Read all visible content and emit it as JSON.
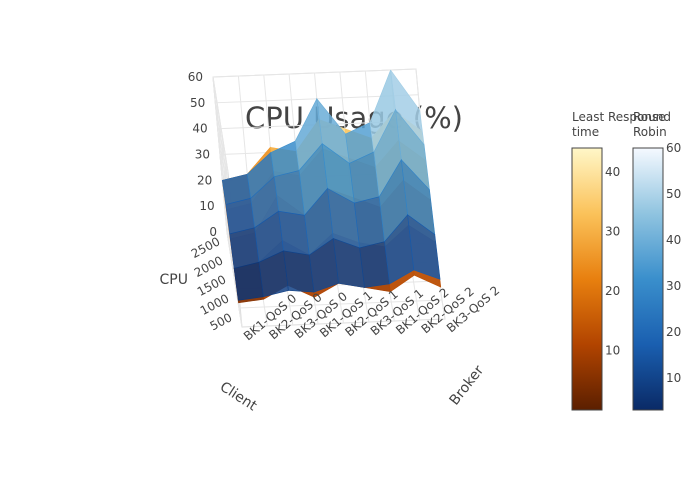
{
  "chart_data": {
    "type": "surface",
    "title": "CPU Usage (%)",
    "x_axis": {
      "title": "Broker",
      "categories": [
        "BK1-QoS 0",
        "BK2-QoS 0",
        "BK3-QoS 0",
        "BK1-QoS 1",
        "BK2-QoS 1",
        "BK3-QoS 1",
        "BK1-QoS 2",
        "BK2-QoS 2",
        "BK3-QoS 2"
      ]
    },
    "y_axis": {
      "title": "Client",
      "tick_values": [
        500,
        1000,
        1500,
        2000,
        2500
      ],
      "tick_labels": [
        "500",
        "1000",
        "1500",
        "2000",
        "2500"
      ],
      "range": [
        0,
        2500
      ]
    },
    "z_axis": {
      "title": "CPU",
      "tick_values": [
        0,
        10,
        20,
        30,
        40,
        50,
        60
      ],
      "tick_labels": [
        "0",
        "10",
        "20",
        "30",
        "40",
        "50",
        "60"
      ],
      "range": [
        0,
        60
      ]
    },
    "client_levels": [
      500,
      1000,
      1500,
      2000,
      2500
    ],
    "series": [
      {
        "name": "Least Response time",
        "colorscale": [
          "#5b1f00",
          "#b24400",
          "#e8800f",
          "#fbc25a",
          "#fff7c8"
        ],
        "colorbar": {
          "title_lines": [
            "Least Response",
            "time"
          ],
          "tick_values": [
            10,
            20,
            30,
            40
          ],
          "range": [
            0,
            44
          ]
        },
        "z": [
          [
            2,
            8,
            12,
            16,
            20
          ],
          [
            3,
            10,
            14,
            18,
            22
          ],
          [
            8,
            18,
            28,
            30,
            32
          ],
          [
            3,
            12,
            20,
            28,
            30
          ],
          [
            8,
            20,
            30,
            38,
            42
          ],
          [
            6,
            16,
            26,
            34,
            38
          ],
          [
            4,
            14,
            22,
            30,
            34
          ],
          [
            10,
            22,
            32,
            40,
            44
          ],
          [
            5,
            15,
            24,
            32,
            36
          ]
        ]
      },
      {
        "name": "Round Robin",
        "colorscale": [
          "#0a2a66",
          "#1a5fb0",
          "#3a8fcc",
          "#90c4e0",
          "#f5f9ff"
        ],
        "colorbar": {
          "title_lines": [
            "Round",
            "Robin"
          ],
          "tick_values": [
            10,
            20,
            30,
            40,
            50,
            60
          ],
          "range": [
            3,
            60
          ]
        },
        "z": [
          [
            3,
            8,
            14,
            18,
            20
          ],
          [
            4,
            10,
            16,
            20,
            22
          ],
          [
            6,
            14,
            22,
            28,
            30
          ],
          [
            5,
            12,
            20,
            30,
            34
          ],
          [
            8,
            18,
            30,
            40,
            50
          ],
          [
            6,
            14,
            24,
            32,
            36
          ],
          [
            7,
            16,
            26,
            36,
            40
          ],
          [
            12,
            26,
            40,
            52,
            60
          ],
          [
            8,
            18,
            28,
            38,
            44
          ]
        ]
      }
    ]
  }
}
